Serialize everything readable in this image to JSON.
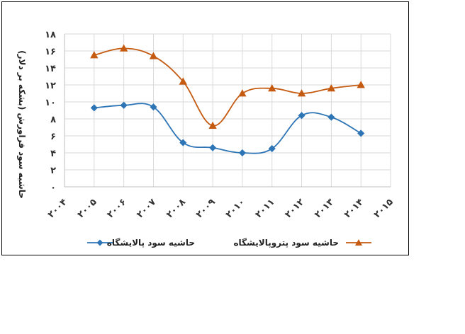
{
  "chart_data": {
    "type": "line",
    "title": "",
    "xlabel": "",
    "ylabel": "حاشیه سود فراورش (بشکه بر دلار)",
    "x_ticks": [
      "۲۰۰۴",
      "۲۰۰۵",
      "۲۰۰۶",
      "۲۰۰۷",
      "۲۰۰۸",
      "۲۰۰۹",
      "۲۰۱۰",
      "۲۰۱۱",
      "۲۰۱۲",
      "۲۰۱۳",
      "۲۰۱۴",
      "۲۰۱۵"
    ],
    "y_ticks": [
      "۰",
      "۲",
      "۴",
      "۶",
      "۸",
      "۱۰",
      "۱۲",
      "۱۴",
      "۱۶",
      "۱۸"
    ],
    "ylim": [
      0,
      18
    ],
    "xlim": [
      2004,
      2015
    ],
    "grid": true,
    "legend_position": "bottom",
    "series": [
      {
        "name": "حاشیه سود پالایشگاه",
        "color": "#2E75B6",
        "marker": "diamond",
        "x": [
          2005,
          2006,
          2007,
          2008,
          2009,
          2010,
          2011,
          2012,
          2013,
          2014
        ],
        "values": [
          9.3,
          9.6,
          9.4,
          5.2,
          4.6,
          4.0,
          4.5,
          8.4,
          8.2,
          6.3
        ]
      },
      {
        "name": "حاشیه سود پتروپالایشگاه",
        "color": "#C55A11",
        "marker": "triangle",
        "x": [
          2005,
          2006,
          2007,
          2008,
          2009,
          2010,
          2011,
          2012,
          2013,
          2014
        ],
        "values": [
          15.5,
          16.3,
          15.4,
          12.4,
          7.2,
          11.0,
          11.6,
          11.0,
          11.6,
          12.0
        ]
      }
    ]
  }
}
